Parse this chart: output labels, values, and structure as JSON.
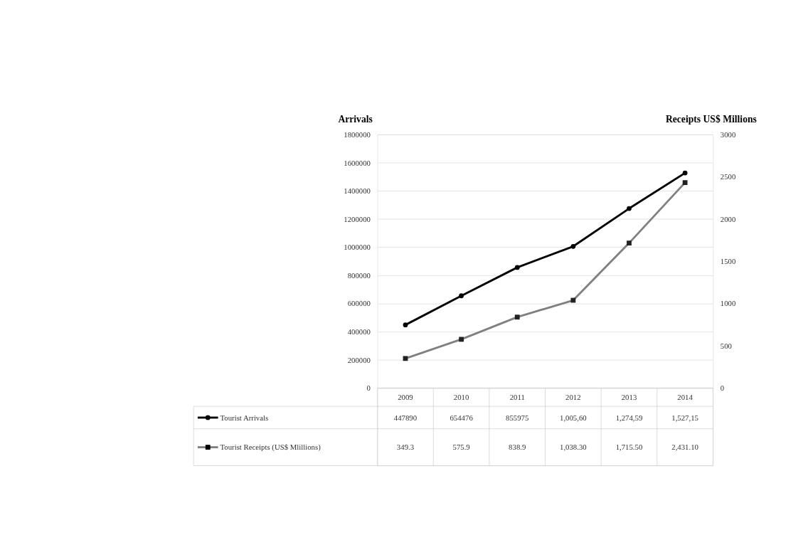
{
  "chart_data": {
    "type": "line",
    "categories": [
      "2009",
      "2010",
      "2011",
      "2012",
      "2013",
      "2014"
    ],
    "ylabel": "Arrivals",
    "y2label": "Receipts US$ Millions",
    "ylim": [
      0,
      1800000
    ],
    "yticks": [
      0,
      200000,
      400000,
      600000,
      800000,
      1000000,
      1200000,
      1400000,
      1600000,
      1800000
    ],
    "y2lim": [
      0,
      3000
    ],
    "y2ticks": [
      0,
      500,
      1000,
      1500,
      2000,
      2500,
      3000
    ],
    "grid": "y",
    "legend": "bottom",
    "series": [
      {
        "name": "Tourist Arrivals",
        "color": "#000000",
        "marker": "circle",
        "values": [
          447890,
          654476,
          855975,
          1005600,
          1274590,
          1527150
        ],
        "value_labels": [
          "447890",
          "654476",
          "855975",
          "1,005,60",
          "1,274,59",
          "1,527,15"
        ]
      },
      {
        "name": "Tourist Receipts (US$ Mlillions)",
        "color": "#808080",
        "marker": "square",
        "axis": "y2",
        "values": [
          349.3,
          575.9,
          838.9,
          1038.3,
          1715.5,
          2431.1
        ],
        "value_labels": [
          "349.3",
          "575.9",
          "838.9",
          "1,038.30",
          "1,715.50",
          "2,431.10"
        ]
      }
    ]
  }
}
